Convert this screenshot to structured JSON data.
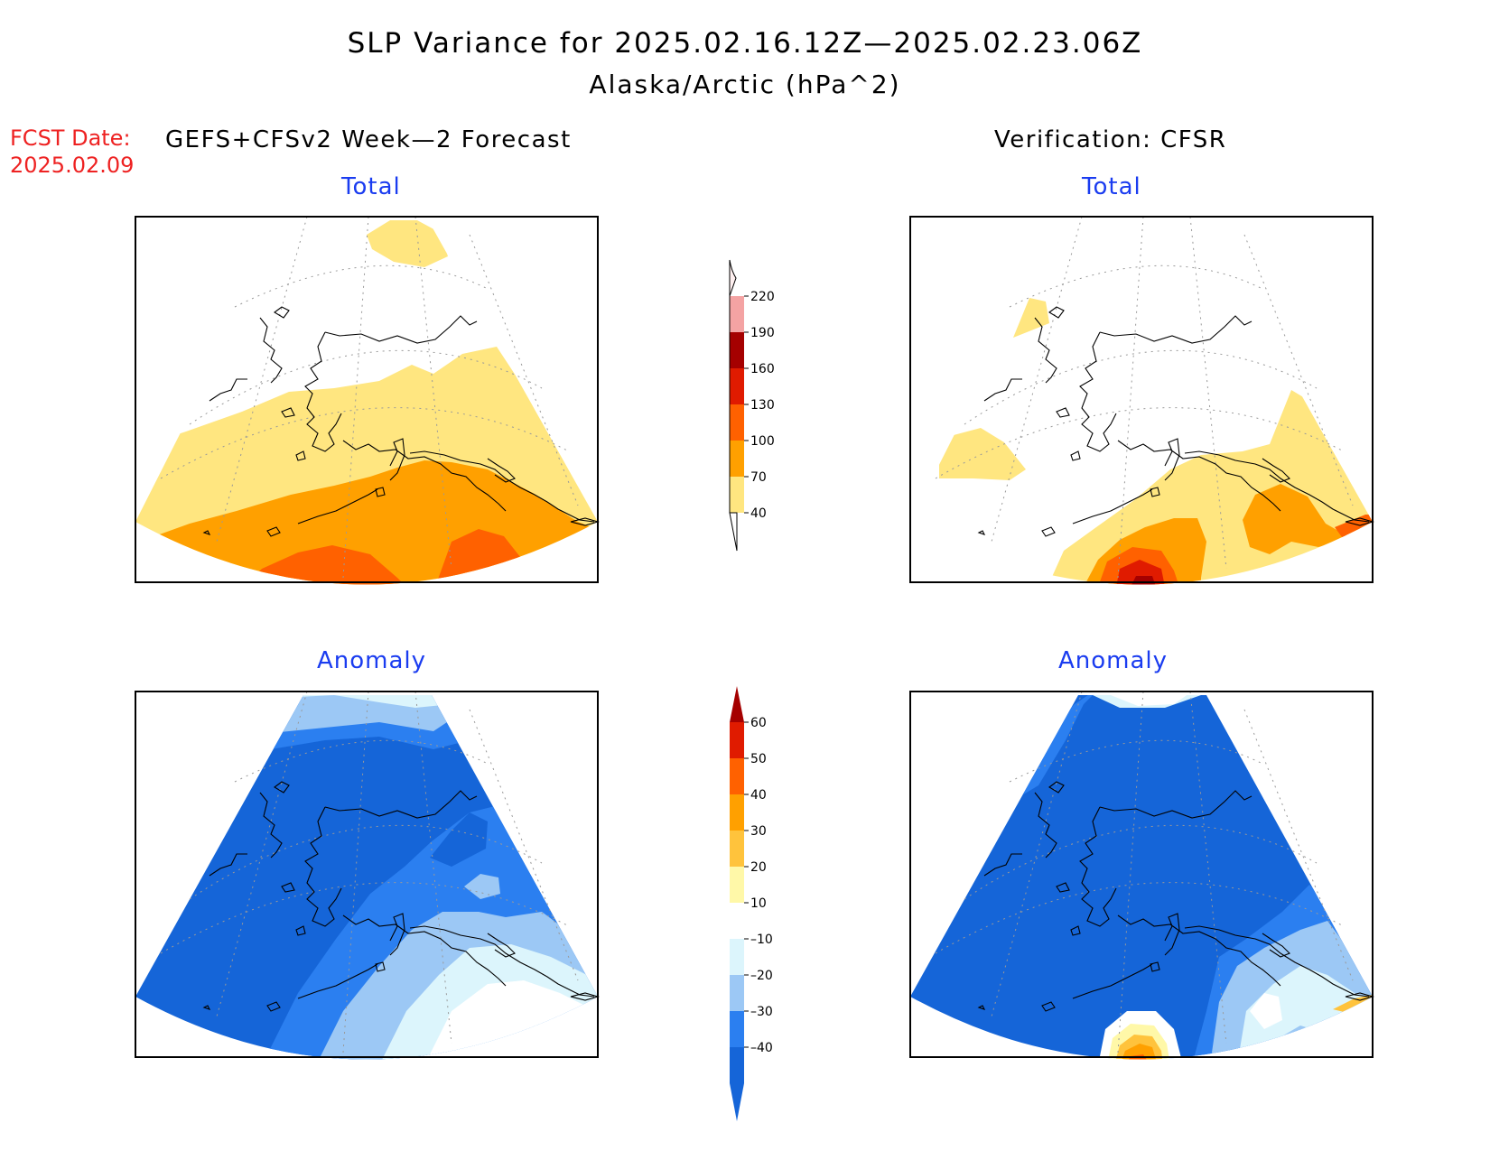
{
  "header": {
    "title": "SLP Variance for 2025.02.16.12Z—2025.02.23.06Z",
    "subtitle": "Alaska/Arctic (hPa^2)",
    "fcst_label": "FCST Date:",
    "fcst_date": "2025.02.09"
  },
  "columns": {
    "forecast_heading": "GEFS+CFSv2 Week—2 Forecast",
    "verification_heading": "Verification: CFSR"
  },
  "panels": {
    "forecast_total_title": "Total",
    "verification_total_title": "Total",
    "forecast_anomaly_title": "Anomaly",
    "verification_anomaly_title": "Anomaly"
  },
  "legends": {
    "total": {
      "labels": [
        "40",
        "70",
        "100",
        "130",
        "160",
        "190",
        "220"
      ],
      "colors": [
        "#ffe680",
        "#ffa000",
        "#ff6100",
        "#e01b00",
        "#a50000",
        "#f4a3a3",
        "#fff0f0"
      ]
    },
    "anomaly": {
      "labels": [
        "–40",
        "–30",
        "–20",
        "–10",
        "10",
        "20",
        "30",
        "40",
        "50",
        "60"
      ],
      "colors": [
        "#1565d8",
        "#2b7ff0",
        "#9cc8f5",
        "#dcf5fc",
        "#ffffff",
        "#fff8a8",
        "#ffc33c",
        "#ffa000",
        "#ff6100",
        "#e01b00",
        "#a50000"
      ]
    }
  },
  "palette": {
    "title_blue": "#1a3cf0",
    "fcst_red": "#ee2222"
  }
}
